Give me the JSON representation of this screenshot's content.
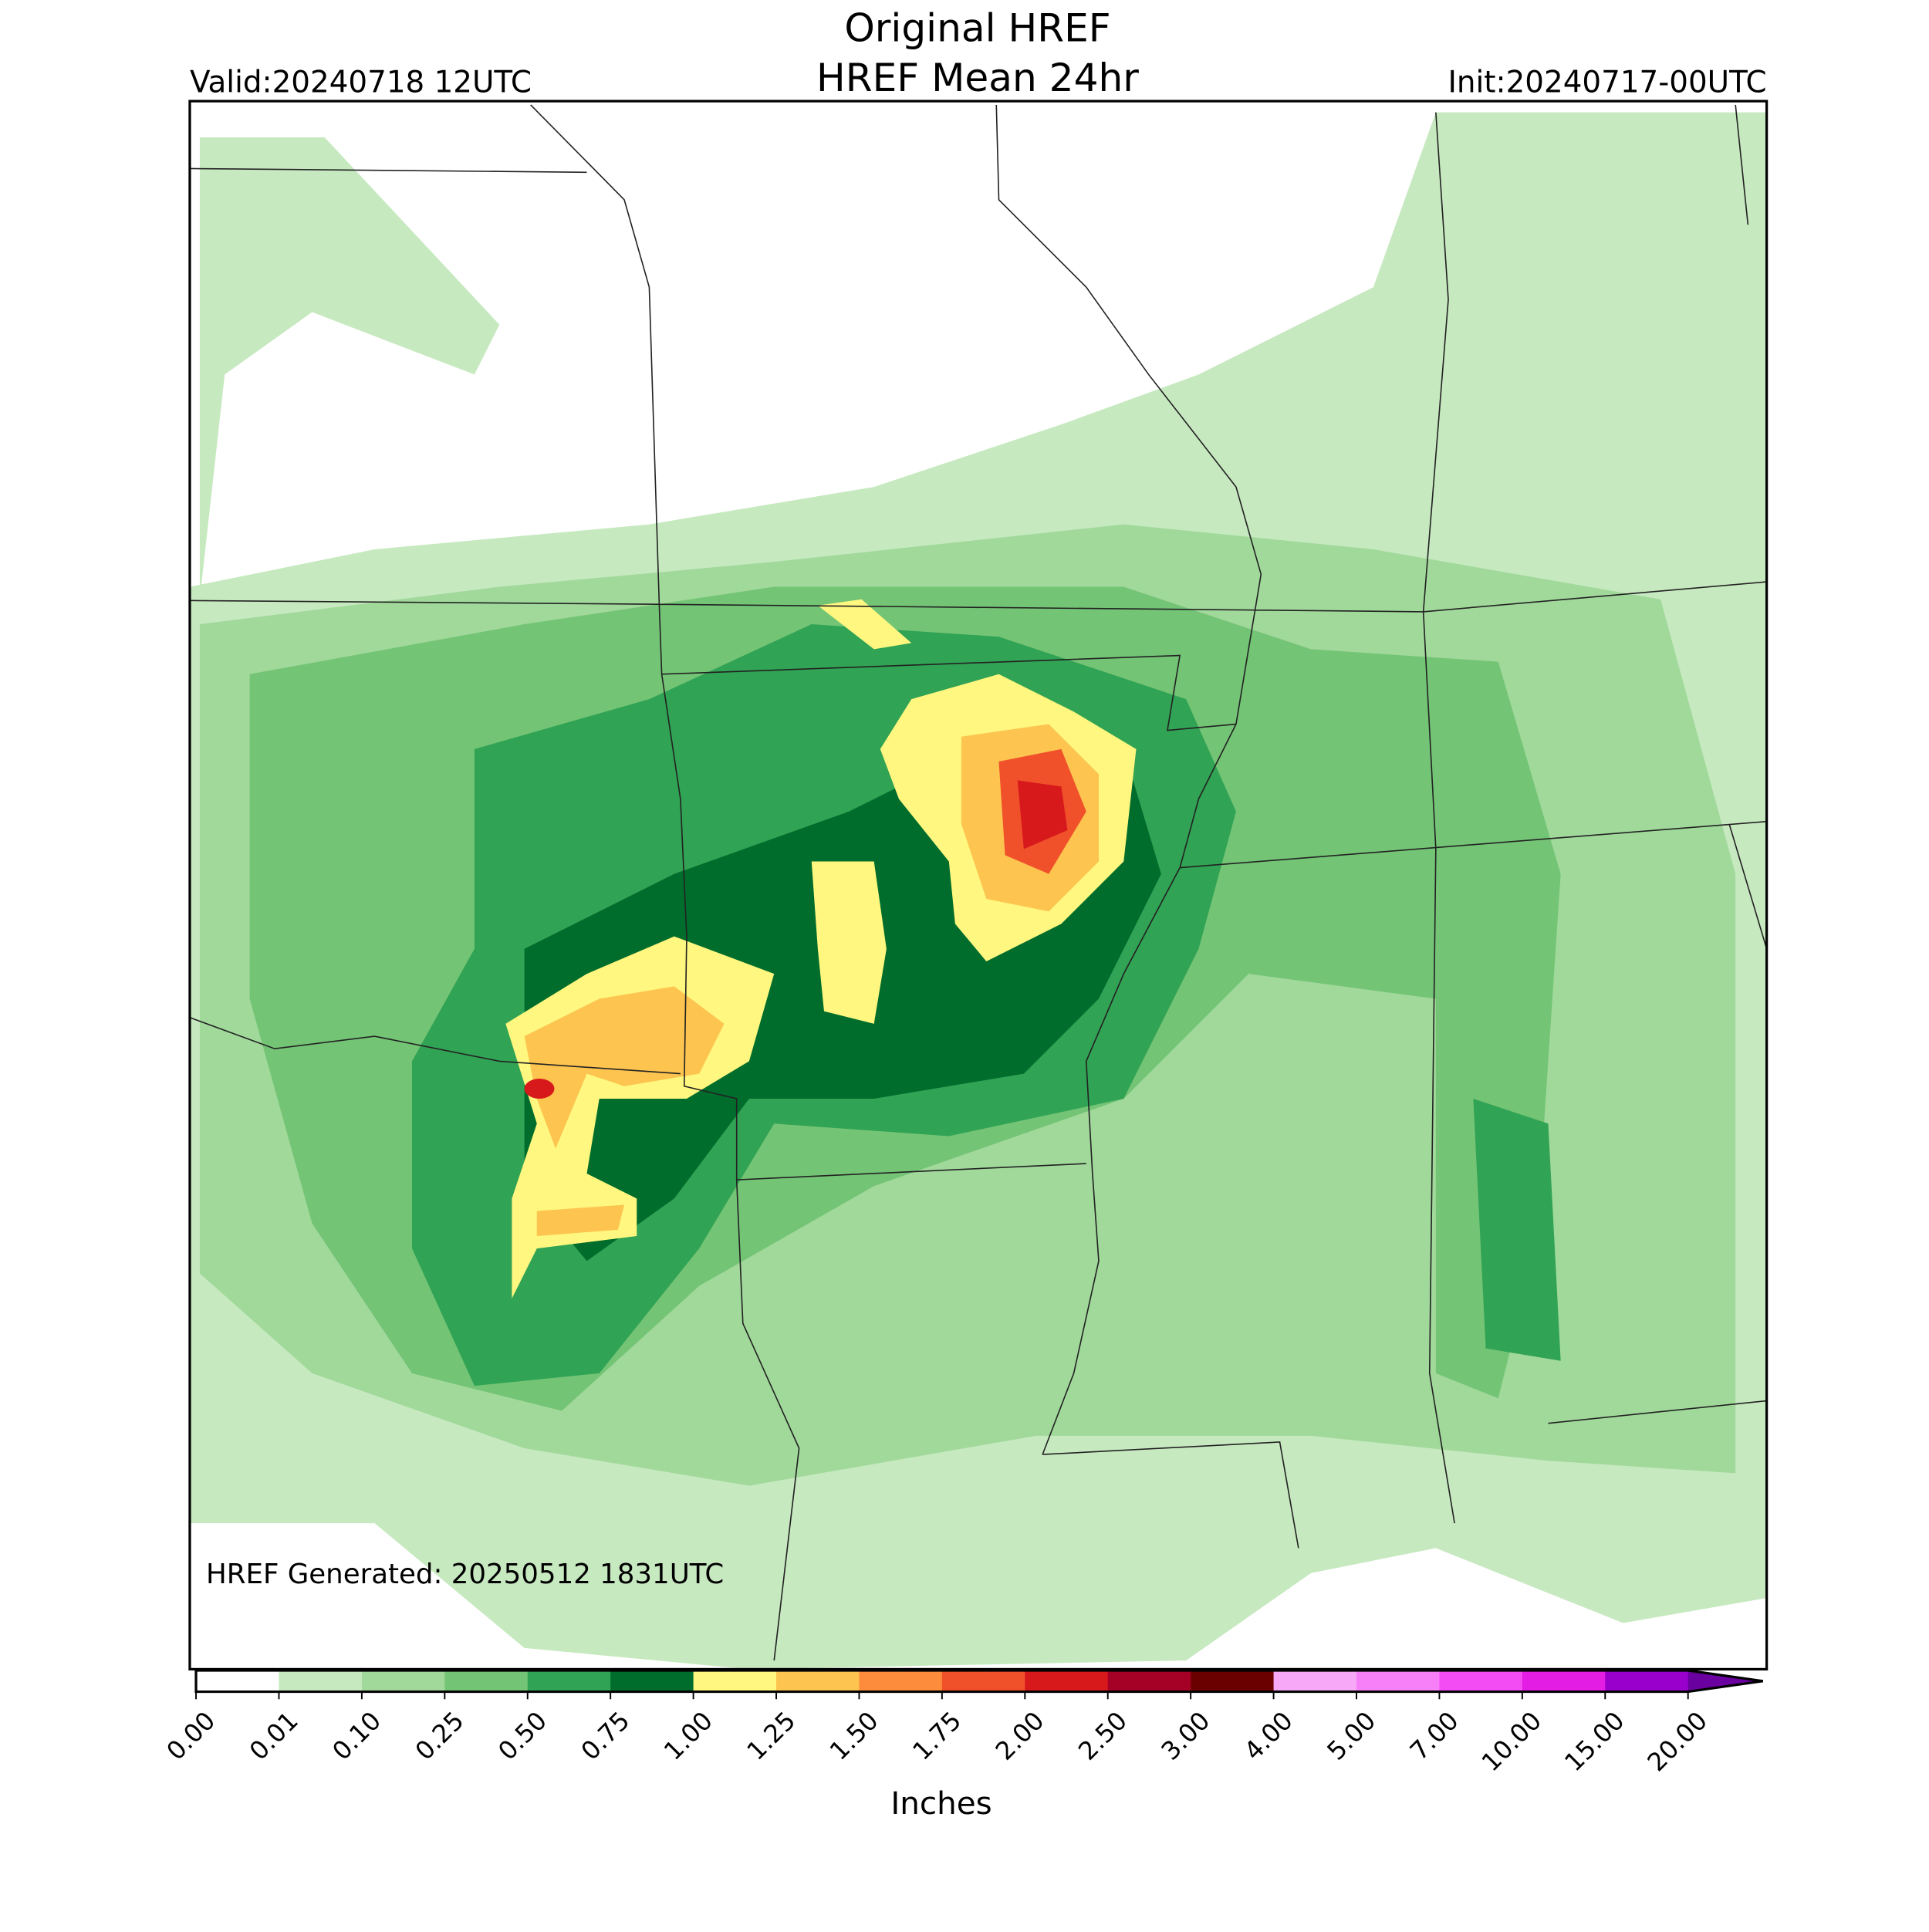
{
  "header": {
    "title": "Original HREF",
    "subtitle": "HREF Mean 24hr",
    "valid": "Valid:20240718 12UTC",
    "init": "Init:20240717-00UTC"
  },
  "map": {
    "generated": "HREF Generated: 20250512 1831UTC"
  },
  "colorbar": {
    "ticks": [
      "0.00",
      "0.01",
      "0.10",
      "0.25",
      "0.50",
      "0.75",
      "1.00",
      "1.25",
      "1.50",
      "1.75",
      "2.00",
      "2.50",
      "3.00",
      "4.00",
      "5.00",
      "7.00",
      "10.00",
      "15.00",
      "20.00"
    ],
    "colors": [
      "#ffffff",
      "#c7e9c0",
      "#a1d99b",
      "#74c476",
      "#31a354",
      "#006d2c",
      "#fff77f",
      "#fdc44f",
      "#fd8d3c",
      "#f0502a",
      "#d7191c",
      "#a50026",
      "#6b0000",
      "#f7a8f7",
      "#f77ff7",
      "#f44cf4",
      "#e31de3",
      "#9900cc"
    ],
    "extend_color": "#6a00a0",
    "label": "Inches"
  }
}
